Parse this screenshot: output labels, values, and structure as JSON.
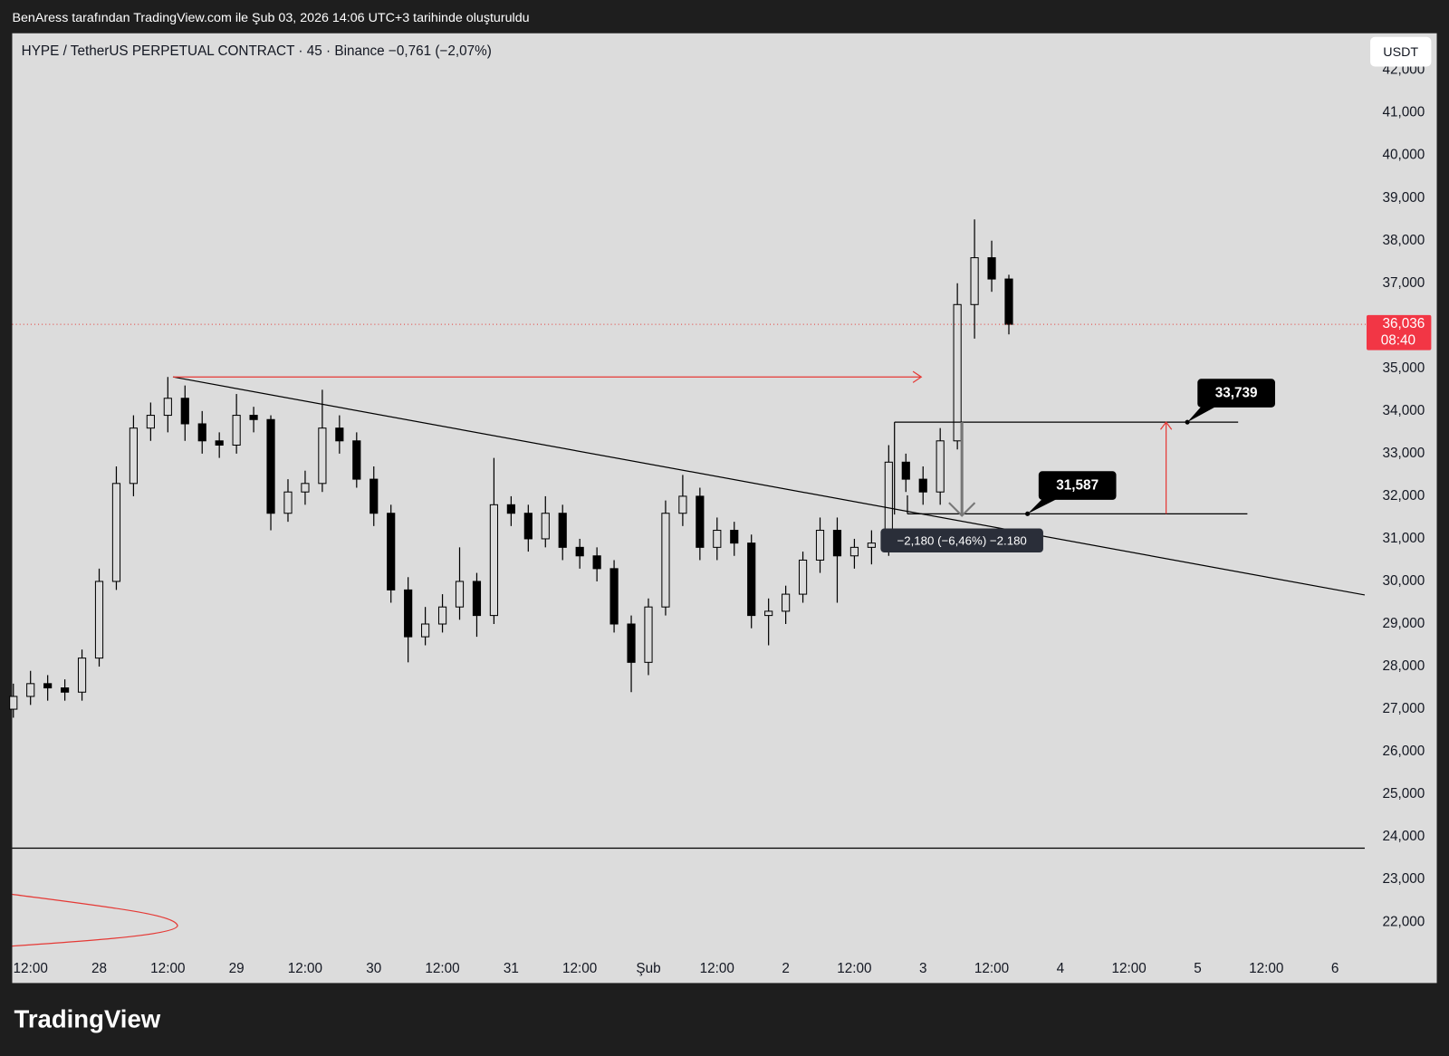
{
  "header": "BenAress tarafından TradingView.com ile Şub 03, 2026 14:06 UTC+3 tarihinde oluşturuldu",
  "logo": "TradingView",
  "chart_data": {
    "type": "candlestick",
    "title": "HYPE / TetherUS PERPETUAL CONTRACT · 45 · Binance  −0,761 (−2,07%)",
    "currency": "USDT",
    "x": [
      -3,
      0,
      3,
      6,
      9,
      12,
      15,
      18,
      21,
      24,
      27,
      30,
      33,
      36,
      39,
      42,
      45,
      48,
      51,
      54,
      57,
      60,
      63,
      66,
      69,
      72,
      75,
      78,
      81,
      84,
      87,
      90,
      93,
      96,
      99,
      102,
      105,
      108,
      111,
      114,
      117,
      120,
      123,
      126,
      129,
      132,
      135,
      138,
      141,
      144,
      147,
      150,
      153,
      156,
      159,
      162,
      165,
      168,
      171
    ],
    "open": [
      27000,
      27300,
      27600,
      27500,
      27400,
      28200,
      30000,
      32300,
      33600,
      33900,
      34300,
      33700,
      33300,
      33200,
      33900,
      33800,
      31600,
      32100,
      32300,
      33600,
      33300,
      32400,
      31600,
      29800,
      28700,
      29000,
      29400,
      30000,
      29200,
      31800,
      31600,
      31000,
      31600,
      30800,
      30600,
      30300,
      29000,
      28100,
      29400,
      31600,
      32000,
      30800,
      31200,
      30900,
      29200,
      29300,
      29700,
      30500,
      31200,
      30600,
      30800,
      30900,
      32800,
      32400,
      32100,
      33300,
      36500,
      37600,
      37100
    ],
    "high": [
      27600,
      27900,
      27800,
      27700,
      28400,
      30300,
      32700,
      33900,
      34200,
      34800,
      34600,
      34000,
      33500,
      34400,
      34100,
      33900,
      32400,
      32600,
      34500,
      33900,
      33500,
      32700,
      31800,
      30100,
      29400,
      29700,
      30800,
      30200,
      32900,
      32000,
      31800,
      32000,
      31800,
      31000,
      30800,
      30500,
      29200,
      29600,
      31900,
      32500,
      32200,
      31500,
      31400,
      31100,
      29600,
      29900,
      30700,
      31500,
      31500,
      31000,
      31200,
      33200,
      33000,
      32700,
      33600,
      37000,
      38500,
      38000,
      37200
    ],
    "low": [
      26800,
      27100,
      27200,
      27200,
      27200,
      28000,
      29800,
      32000,
      33300,
      33500,
      33300,
      33000,
      32900,
      33000,
      33500,
      31200,
      31400,
      31800,
      32100,
      33000,
      32200,
      31300,
      29500,
      28100,
      28500,
      28800,
      29100,
      28700,
      29000,
      31300,
      30700,
      30800,
      30500,
      30300,
      30000,
      28800,
      27400,
      27800,
      29200,
      31300,
      30500,
      30500,
      30600,
      28900,
      28500,
      29000,
      29500,
      30200,
      29500,
      30300,
      30400,
      30600,
      32100,
      31800,
      31800,
      33100,
      35700,
      36800,
      35800
    ],
    "close": [
      27300,
      27600,
      27500,
      27400,
      28200,
      30000,
      32300,
      33600,
      33900,
      34300,
      33700,
      33300,
      33200,
      33900,
      33800,
      31600,
      32100,
      32300,
      33600,
      33300,
      32400,
      31600,
      29800,
      28700,
      29000,
      29400,
      30000,
      29200,
      31800,
      31600,
      31000,
      31600,
      30800,
      30600,
      30300,
      29000,
      28100,
      29400,
      31600,
      32000,
      30800,
      31200,
      30900,
      29200,
      29300,
      29700,
      30500,
      31200,
      30600,
      30800,
      30900,
      32800,
      32400,
      32100,
      33300,
      36500,
      37600,
      37100,
      36036
    ],
    "xlim": [
      -3.2,
      233.2
    ],
    "ylim": [
      21200,
      42870
    ],
    "xticks": [
      {
        "value": 0,
        "label": "12:00"
      },
      {
        "value": 12,
        "label": "28"
      },
      {
        "value": 24,
        "label": "12:00"
      },
      {
        "value": 36,
        "label": "29"
      },
      {
        "value": 48,
        "label": "12:00"
      },
      {
        "value": 60,
        "label": "30"
      },
      {
        "value": 72,
        "label": "12:00"
      },
      {
        "value": 84,
        "label": "31"
      },
      {
        "value": 96,
        "label": "12:00"
      },
      {
        "value": 108,
        "label": "Şub"
      },
      {
        "value": 120,
        "label": "12:00"
      },
      {
        "value": 132,
        "label": "2"
      },
      {
        "value": 144,
        "label": "12:00"
      },
      {
        "value": 156,
        "label": "3"
      },
      {
        "value": 168,
        "label": "12:00"
      },
      {
        "value": 180,
        "label": "4"
      },
      {
        "value": 192,
        "label": "12:00"
      },
      {
        "value": 204,
        "label": "5"
      },
      {
        "value": 216,
        "label": "12:00"
      },
      {
        "value": 228,
        "label": "6"
      }
    ],
    "yticks": [
      {
        "value": 22000,
        "label": "22,000"
      },
      {
        "value": 23000,
        "label": "23,000"
      },
      {
        "value": 24000,
        "label": "24,000"
      },
      {
        "value": 25000,
        "label": "25,000"
      },
      {
        "value": 26000,
        "label": "26,000"
      },
      {
        "value": 27000,
        "label": "27,000"
      },
      {
        "value": 28000,
        "label": "28,000"
      },
      {
        "value": 29000,
        "label": "29,000"
      },
      {
        "value": 30000,
        "label": "30,000"
      },
      {
        "value": 31000,
        "label": "31,000"
      },
      {
        "value": 32000,
        "label": "32,000"
      },
      {
        "value": 33000,
        "label": "33,000"
      },
      {
        "value": 34000,
        "label": "34,000"
      },
      {
        "value": 35000,
        "label": "35,000"
      },
      {
        "value": 36000,
        "label": "36,000"
      },
      {
        "value": 37000,
        "label": "37,000"
      },
      {
        "value": 38000,
        "label": "38,000"
      },
      {
        "value": 39000,
        "label": "39,000"
      },
      {
        "value": 40000,
        "label": "40,000"
      },
      {
        "value": 41000,
        "label": "41,000"
      },
      {
        "value": 42000,
        "label": "42,000"
      }
    ],
    "up_color": "#dcdcdc",
    "down_color": "#000000",
    "levels": [
      {
        "value": 33739,
        "label": "33,739"
      },
      {
        "value": 31587,
        "label": "31,587"
      }
    ],
    "measure_label": "−2,180 (−6,46%) −2.180",
    "last_price": {
      "value": 36036,
      "label": "36,036"
    },
    "countdown": "08:40"
  }
}
